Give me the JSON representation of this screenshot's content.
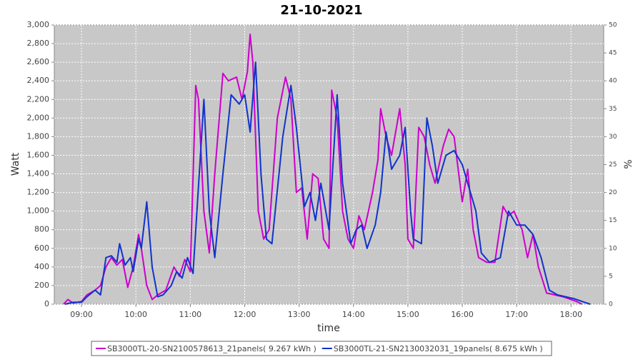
{
  "chart_data": {
    "type": "line",
    "title": "21-10-2021",
    "xlabel": "time",
    "ylabel": "Watt",
    "y2label": "%",
    "xlim": [
      8.5,
      18.6
    ],
    "ylim": [
      0,
      3000
    ],
    "y2lim": [
      0,
      50
    ],
    "xticks": [
      {
        "value": 9,
        "label": "09:00"
      },
      {
        "value": 10,
        "label": "10:00"
      },
      {
        "value": 11,
        "label": "11:00"
      },
      {
        "value": 12,
        "label": "12:00"
      },
      {
        "value": 13,
        "label": "13:00"
      },
      {
        "value": 14,
        "label": "14:00"
      },
      {
        "value": 15,
        "label": "15:00"
      },
      {
        "value": 16,
        "label": "16:00"
      },
      {
        "value": 17,
        "label": "17:00"
      },
      {
        "value": 18,
        "label": "18:00"
      }
    ],
    "yticks": [
      0,
      200,
      400,
      600,
      800,
      {
        "value": 1000,
        "label": "1,000"
      },
      {
        "value": 1200,
        "label": "1,200"
      },
      {
        "value": 1400,
        "label": "1,400"
      },
      {
        "value": 1600,
        "label": "1,600"
      },
      {
        "value": 1800,
        "label": "1,800"
      },
      {
        "value": 2000,
        "label": "2,000"
      },
      {
        "value": 2200,
        "label": "2,200"
      },
      {
        "value": 2400,
        "label": "2,400"
      },
      {
        "value": 2600,
        "label": "2,600"
      },
      {
        "value": 2800,
        "label": "2,800"
      },
      {
        "value": 3000,
        "label": "3,000"
      }
    ],
    "y2ticks": [
      0,
      5,
      10,
      15,
      20,
      25,
      30,
      35,
      40,
      45,
      50
    ],
    "grid": true,
    "legend": "bottom",
    "series": [
      {
        "name": "SB3000TL-20-SN2100578613_21panels( 9.267 kWh )",
        "color": "#cc00cc",
        "x": [
          8.67,
          8.75,
          8.85,
          9.0,
          9.1,
          9.25,
          9.35,
          9.45,
          9.55,
          9.65,
          9.75,
          9.85,
          9.95,
          10.05,
          10.1,
          10.2,
          10.3,
          10.4,
          10.55,
          10.7,
          10.8,
          10.9,
          11.0,
          11.1,
          11.15,
          11.25,
          11.35,
          11.45,
          11.6,
          11.7,
          11.85,
          11.95,
          12.05,
          12.1,
          12.15,
          12.25,
          12.35,
          12.45,
          12.6,
          12.75,
          12.85,
          12.95,
          13.05,
          13.15,
          13.25,
          13.35,
          13.45,
          13.55,
          13.6,
          13.7,
          13.8,
          13.9,
          14.0,
          14.1,
          14.2,
          14.35,
          14.45,
          14.5,
          14.6,
          14.7,
          14.85,
          14.95,
          15.0,
          15.1,
          15.2,
          15.3,
          15.4,
          15.5,
          15.65,
          15.75,
          15.85,
          16.0,
          16.1,
          16.2,
          16.3,
          16.45,
          16.6,
          16.75,
          16.85,
          16.95,
          17.1,
          17.2,
          17.3,
          17.4,
          17.55,
          17.7,
          17.85,
          18.0,
          18.1,
          18.2
        ],
        "values": [
          0,
          50,
          10,
          30,
          100,
          150,
          200,
          400,
          500,
          420,
          480,
          180,
          400,
          750,
          600,
          200,
          50,
          100,
          150,
          400,
          300,
          480,
          350,
          2350,
          2200,
          1000,
          550,
          1400,
          2480,
          2400,
          2440,
          2200,
          2500,
          2900,
          2600,
          1000,
          700,
          800,
          2000,
          2440,
          2200,
          1200,
          1250,
          700,
          1400,
          1350,
          700,
          600,
          2300,
          2000,
          1000,
          700,
          600,
          950,
          800,
          1200,
          1550,
          2100,
          1800,
          1600,
          2100,
          1500,
          700,
          600,
          1900,
          1800,
          1500,
          1300,
          1700,
          1880,
          1800,
          1100,
          1450,
          800,
          500,
          450,
          450,
          1050,
          950,
          1000,
          800,
          500,
          750,
          400,
          120,
          100,
          80,
          50,
          30,
          0
        ]
      },
      {
        "name": "SB3000TL-21-SN2130032031_19panels( 8.675 kWh )",
        "color": "#1133cc",
        "x": [
          8.7,
          8.85,
          9.0,
          9.1,
          9.25,
          9.35,
          9.45,
          9.55,
          9.65,
          9.7,
          9.8,
          9.9,
          9.95,
          10.05,
          10.1,
          10.2,
          10.3,
          10.4,
          10.5,
          10.65,
          10.75,
          10.85,
          10.95,
          11.05,
          11.25,
          11.35,
          11.45,
          11.6,
          11.75,
          11.9,
          12.0,
          12.1,
          12.2,
          12.3,
          12.4,
          12.5,
          12.7,
          12.85,
          12.95,
          13.1,
          13.2,
          13.3,
          13.4,
          13.55,
          13.7,
          13.8,
          13.95,
          14.05,
          14.15,
          14.25,
          14.4,
          14.5,
          14.6,
          14.7,
          14.85,
          14.95,
          15.05,
          15.1,
          15.25,
          15.35,
          15.45,
          15.55,
          15.7,
          15.85,
          16.0,
          16.15,
          16.25,
          16.35,
          16.5,
          16.7,
          16.85,
          17.0,
          17.15,
          17.3,
          17.45,
          17.6,
          17.75,
          17.9,
          18.05,
          18.25,
          18.35
        ],
        "values": [
          0,
          20,
          20,
          80,
          150,
          100,
          500,
          520,
          450,
          650,
          420,
          500,
          350,
          700,
          600,
          1100,
          400,
          80,
          100,
          200,
          350,
          280,
          500,
          330,
          2200,
          1000,
          500,
          1400,
          2250,
          2150,
          2250,
          1850,
          2600,
          1400,
          700,
          650,
          1800,
          2350,
          1900,
          1050,
          1200,
          900,
          1300,
          800,
          2250,
          1300,
          650,
          800,
          850,
          600,
          850,
          1200,
          1850,
          1450,
          1600,
          1900,
          1000,
          700,
          650,
          2000,
          1700,
          1300,
          1600,
          1650,
          1500,
          1200,
          1000,
          550,
          450,
          500,
          1000,
          850,
          850,
          750,
          500,
          150,
          100,
          80,
          60,
          20,
          0
        ]
      }
    ]
  }
}
